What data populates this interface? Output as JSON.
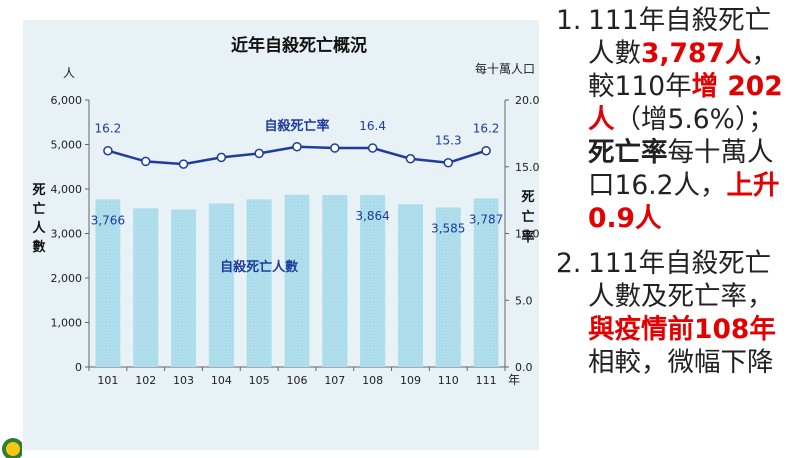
{
  "chart_data": {
    "type": "bar+line",
    "title": "近年自殺死亡概況",
    "categories": [
      "101",
      "102",
      "103",
      "104",
      "105",
      "106",
      "107",
      "108",
      "109",
      "110",
      "111"
    ],
    "x_unit": "年",
    "y_left": {
      "unit": "人",
      "label_chars": [
        "死",
        "亡",
        "人",
        "數"
      ],
      "ticks": [
        "0",
        "1,000",
        "2,000",
        "3,000",
        "4,000",
        "5,000",
        "6,000"
      ],
      "range": [
        0,
        6000
      ]
    },
    "y_right": {
      "unit": "每十萬人口",
      "label_chars": [
        "死",
        "亡",
        "率"
      ],
      "ticks": [
        "0.0",
        "5.0",
        "10.0",
        "15.0",
        "20.0"
      ],
      "range": [
        0,
        20
      ]
    },
    "series": [
      {
        "name": "自殺死亡人數",
        "type": "bar",
        "axis": "left",
        "color": "#a9dbea",
        "values": [
          3766,
          3565,
          3542,
          3675,
          3765,
          3871,
          3865,
          3864,
          3656,
          3585,
          3787
        ],
        "labels": [
          "3,766",
          "",
          "",
          "",
          "",
          "",
          "",
          "3,864",
          "",
          "3,585",
          "3,787"
        ]
      },
      {
        "name": "自殺死亡率",
        "type": "line",
        "axis": "right",
        "color": "#1f3b9c",
        "values": [
          16.2,
          15.4,
          15.2,
          15.7,
          16.0,
          16.5,
          16.4,
          16.4,
          15.6,
          15.3,
          16.2
        ],
        "labels": [
          "16.2",
          "",
          "",
          "",
          "",
          "",
          "",
          "16.4",
          "",
          "15.3",
          "16.2"
        ]
      }
    ]
  },
  "bullets": [
    {
      "num": "1.",
      "parts": [
        {
          "t": "111年自殺死亡人數",
          "s": "normal"
        },
        {
          "t": "3,787人",
          "s": "red"
        },
        {
          "t": "，較110年",
          "s": "normal"
        },
        {
          "t": "增 202 人",
          "s": "red"
        },
        {
          "t": "（增5.6%）；",
          "s": "normal"
        },
        {
          "t": "死亡率",
          "s": "bold"
        },
        {
          "t": "每十萬人口16.2人，",
          "s": "normal"
        },
        {
          "t": "上升0.9人",
          "s": "red"
        }
      ]
    },
    {
      "num": "2.",
      "parts": [
        {
          "t": "111年自殺死亡人數及死亡率，",
          "s": "normal"
        },
        {
          "t": "與疫情前108年",
          "s": "red"
        },
        {
          "t": "相較，微幅下降",
          "s": "normal"
        }
      ]
    }
  ],
  "colors": {
    "background": "#e7f1f6",
    "bar": "#a9dbea",
    "line": "#1f3b9c",
    "highlight": "#e30000"
  }
}
